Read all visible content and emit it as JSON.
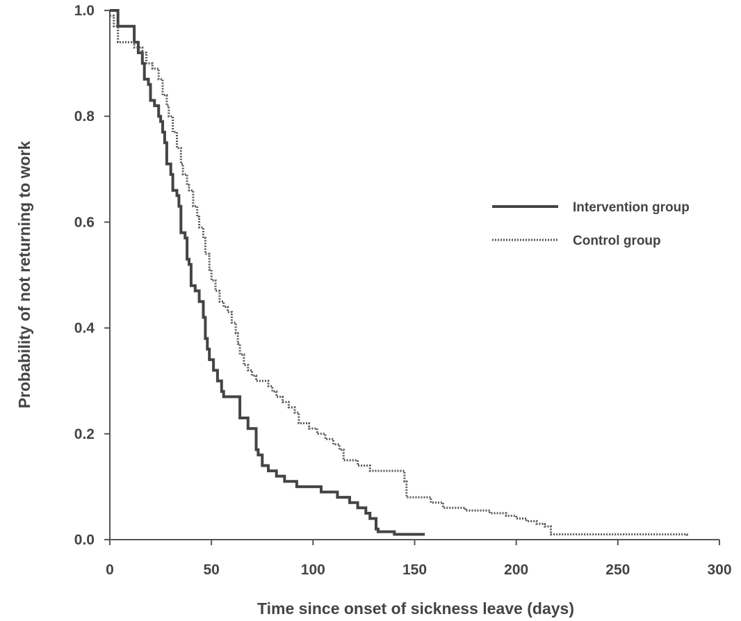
{
  "chart_data": {
    "type": "line",
    "title": "",
    "xlabel": "Time since onset of sickness leave (days)",
    "ylabel": "Probability of not returning to work",
    "xlim": [
      0,
      300
    ],
    "ylim": [
      0,
      1.0
    ],
    "xticks": [
      "0",
      "50",
      "100",
      "150",
      "200",
      "250",
      "300"
    ],
    "yticks": [
      "0.0",
      "0.2",
      "0.4",
      "0.6",
      "0.8",
      "1.0"
    ],
    "grid": false,
    "legend_position": "right-middle",
    "step": true,
    "series": [
      {
        "name": "Intervention group",
        "style": "solid",
        "color": "#444444",
        "points": [
          [
            0,
            1.0
          ],
          [
            4,
            0.97
          ],
          [
            12,
            0.94
          ],
          [
            14,
            0.92
          ],
          [
            16,
            0.9
          ],
          [
            17,
            0.87
          ],
          [
            19,
            0.86
          ],
          [
            20,
            0.83
          ],
          [
            22,
            0.82
          ],
          [
            24,
            0.8
          ],
          [
            25,
            0.79
          ],
          [
            26,
            0.77
          ],
          [
            27,
            0.75
          ],
          [
            28,
            0.71
          ],
          [
            30,
            0.69
          ],
          [
            31,
            0.66
          ],
          [
            33,
            0.65
          ],
          [
            34,
            0.63
          ],
          [
            35,
            0.58
          ],
          [
            37,
            0.57
          ],
          [
            38,
            0.53
          ],
          [
            39,
            0.52
          ],
          [
            40,
            0.48
          ],
          [
            42,
            0.47
          ],
          [
            44,
            0.45
          ],
          [
            46,
            0.42
          ],
          [
            47,
            0.38
          ],
          [
            48,
            0.36
          ],
          [
            49,
            0.34
          ],
          [
            51,
            0.32
          ],
          [
            53,
            0.3
          ],
          [
            55,
            0.28
          ],
          [
            56,
            0.27
          ],
          [
            58,
            0.27
          ],
          [
            64,
            0.23
          ],
          [
            68,
            0.21
          ],
          [
            72,
            0.17
          ],
          [
            73,
            0.16
          ],
          [
            75,
            0.14
          ],
          [
            78,
            0.13
          ],
          [
            82,
            0.12
          ],
          [
            86,
            0.11
          ],
          [
            92,
            0.1
          ],
          [
            104,
            0.09
          ],
          [
            112,
            0.08
          ],
          [
            118,
            0.07
          ],
          [
            122,
            0.06
          ],
          [
            126,
            0.05
          ],
          [
            128,
            0.04
          ],
          [
            131,
            0.02
          ],
          [
            132,
            0.015
          ],
          [
            140,
            0.01
          ],
          [
            155,
            0.01
          ]
        ]
      },
      {
        "name": "Control group",
        "style": "dotted",
        "color": "#555555",
        "points": [
          [
            0,
            0.99
          ],
          [
            2,
            0.97
          ],
          [
            4,
            0.94
          ],
          [
            12,
            0.93
          ],
          [
            16,
            0.92
          ],
          [
            18,
            0.9
          ],
          [
            21,
            0.89
          ],
          [
            24,
            0.87
          ],
          [
            26,
            0.84
          ],
          [
            28,
            0.82
          ],
          [
            29,
            0.8
          ],
          [
            31,
            0.77
          ],
          [
            33,
            0.74
          ],
          [
            35,
            0.71
          ],
          [
            36,
            0.69
          ],
          [
            38,
            0.67
          ],
          [
            39,
            0.66
          ],
          [
            41,
            0.63
          ],
          [
            43,
            0.61
          ],
          [
            44,
            0.59
          ],
          [
            46,
            0.57
          ],
          [
            47,
            0.54
          ],
          [
            49,
            0.51
          ],
          [
            50,
            0.49
          ],
          [
            52,
            0.47
          ],
          [
            54,
            0.45
          ],
          [
            56,
            0.44
          ],
          [
            58,
            0.43
          ],
          [
            60,
            0.41
          ],
          [
            62,
            0.39
          ],
          [
            63,
            0.37
          ],
          [
            64,
            0.35
          ],
          [
            66,
            0.33
          ],
          [
            68,
            0.32
          ],
          [
            70,
            0.31
          ],
          [
            72,
            0.3
          ],
          [
            75,
            0.3
          ],
          [
            78,
            0.29
          ],
          [
            80,
            0.28
          ],
          [
            82,
            0.27
          ],
          [
            85,
            0.26
          ],
          [
            88,
            0.25
          ],
          [
            91,
            0.24
          ],
          [
            93,
            0.22
          ],
          [
            98,
            0.21
          ],
          [
            102,
            0.2
          ],
          [
            106,
            0.19
          ],
          [
            110,
            0.18
          ],
          [
            113,
            0.17
          ],
          [
            115,
            0.15
          ],
          [
            122,
            0.14
          ],
          [
            128,
            0.13
          ],
          [
            145,
            0.11
          ],
          [
            146,
            0.08
          ],
          [
            158,
            0.07
          ],
          [
            164,
            0.06
          ],
          [
            175,
            0.055
          ],
          [
            187,
            0.05
          ],
          [
            195,
            0.045
          ],
          [
            200,
            0.04
          ],
          [
            205,
            0.035
          ],
          [
            210,
            0.03
          ],
          [
            214,
            0.025
          ],
          [
            217,
            0.01
          ],
          [
            282,
            0.01
          ],
          [
            284,
            0.005
          ]
        ]
      }
    ]
  }
}
